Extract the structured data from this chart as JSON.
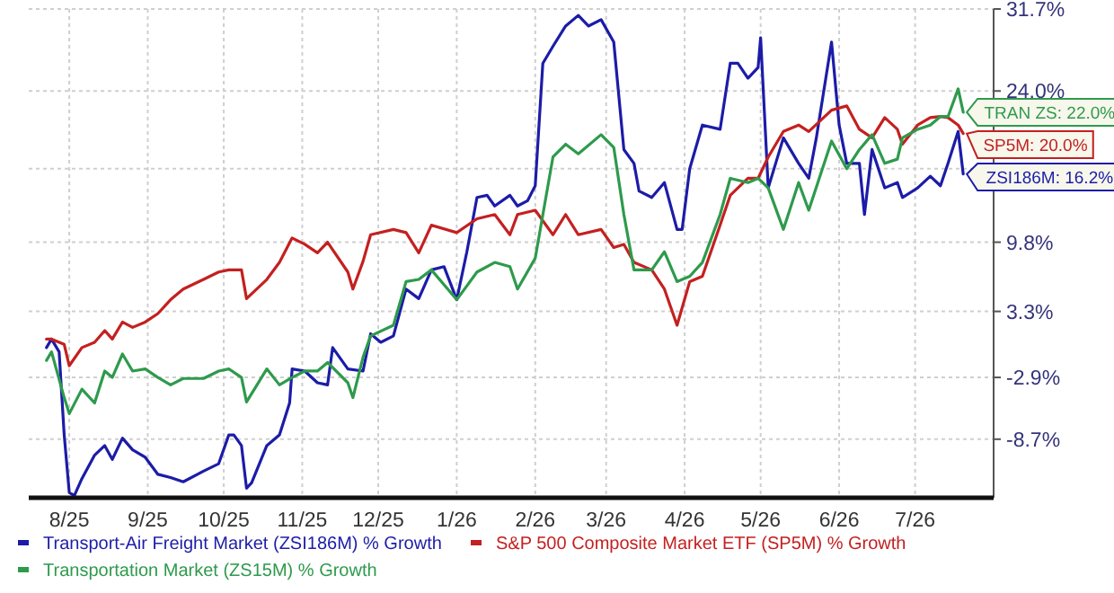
{
  "chart_data": {
    "type": "line",
    "x": [
      "2025-07-23",
      "2025-07-25",
      "2025-07-30",
      "2025-08-01",
      "2025-08-06",
      "2025-08-11",
      "2025-08-15",
      "2025-08-18",
      "2025-08-22",
      "2025-08-26",
      "2025-08-31",
      "2025-09-05",
      "2025-09-10",
      "2025-09-15",
      "2025-09-23",
      "2025-09-29",
      "2025-10-03",
      "2025-10-08",
      "2025-10-10",
      "2025-10-18",
      "2025-10-23",
      "2025-10-28",
      "2025-11-02",
      "2025-11-07",
      "2025-11-11",
      "2025-11-19",
      "2025-11-21",
      "2025-11-25",
      "2025-11-28",
      "2025-12-07",
      "2025-12-12",
      "2025-12-17",
      "2025-12-22",
      "2026-01-01",
      "2026-01-09",
      "2026-01-16",
      "2026-01-22",
      "2026-01-25",
      "2026-02-01",
      "2026-02-08",
      "2026-02-13",
      "2026-02-18",
      "2026-02-27",
      "2026-03-04",
      "2026-03-08",
      "2026-03-12",
      "2026-03-19",
      "2026-03-24",
      "2026-03-29",
      "2026-04-03",
      "2026-04-08",
      "2026-04-15",
      "2026-04-19",
      "2026-04-26",
      "2026-04-30",
      "2026-05-04",
      "2026-05-10",
      "2026-05-16",
      "2026-05-20",
      "2026-05-29",
      "2026-06-04",
      "2026-06-09",
      "2026-06-14",
      "2026-06-19",
      "2026-06-24",
      "2026-06-26",
      "2026-07-02",
      "2026-07-07",
      "2026-07-11",
      "2026-07-14",
      "2026-07-18",
      "2026-07-20"
    ],
    "series": [
      {
        "name": "Transport-Air Freight Market (ZSI186M) % Growth",
        "color": "#1c1ca8",
        "x": [
          "2025-07-23",
          "2025-07-25",
          "2025-07-28",
          "2025-07-30",
          "2025-08-01",
          "2025-08-03",
          "2025-08-06",
          "2025-08-11",
          "2025-08-15",
          "2025-08-18",
          "2025-08-22",
          "2025-08-26",
          "2025-08-31",
          "2025-09-05",
          "2025-09-10",
          "2025-09-15",
          "2025-09-23",
          "2025-09-29",
          "2025-10-03",
          "2025-10-05",
          "2025-10-08",
          "2025-10-10",
          "2025-10-12",
          "2025-10-18",
          "2025-10-23",
          "2025-10-27",
          "2025-10-28",
          "2025-11-02",
          "2025-11-07",
          "2025-11-11",
          "2025-11-13",
          "2025-11-19",
          "2025-11-25",
          "2025-11-28",
          "2025-12-02",
          "2025-12-07",
          "2025-12-12",
          "2025-12-17",
          "2025-12-22",
          "2025-12-27",
          "2026-01-01",
          "2026-01-05",
          "2026-01-09",
          "2026-01-13",
          "2026-01-16",
          "2026-01-22",
          "2026-01-25",
          "2026-01-29",
          "2026-02-01",
          "2026-02-04",
          "2026-02-08",
          "2026-02-13",
          "2026-02-18",
          "2026-02-22",
          "2026-02-27",
          "2026-03-04",
          "2026-03-08",
          "2026-03-12",
          "2026-03-14",
          "2026-03-19",
          "2026-03-24",
          "2026-03-29",
          "2026-03-31",
          "2026-04-03",
          "2026-04-08",
          "2026-04-15",
          "2026-04-19",
          "2026-04-22",
          "2026-04-26",
          "2026-04-30",
          "2026-05-01",
          "2026-05-04",
          "2026-05-10",
          "2026-05-16",
          "2026-05-20",
          "2026-05-23",
          "2026-05-29",
          "2026-06-01",
          "2026-06-04",
          "2026-06-09",
          "2026-06-11",
          "2026-06-14",
          "2026-06-19",
          "2026-06-24",
          "2026-06-26",
          "2026-07-02",
          "2026-07-07",
          "2026-07-11",
          "2026-07-14",
          "2026-07-18",
          "2026-07-20"
        ],
        "values": [
          -0.1,
          0.7,
          -0.5,
          -8.3,
          -13.7,
          -14.0,
          -12.4,
          -10.2,
          -9.3,
          -10.6,
          -8.6,
          -9.7,
          -10.4,
          -12.0,
          -12.3,
          -12.7,
          -11.7,
          -11.0,
          -8.3,
          -8.3,
          -9.3,
          -13.3,
          -12.8,
          -9.3,
          -8.3,
          -5.3,
          -2.1,
          -2.3,
          -3.4,
          -3.6,
          -0.1,
          -2.1,
          -2.3,
          1.2,
          0.4,
          1.0,
          5.4,
          4.5,
          7.2,
          7.5,
          4.4,
          8.9,
          14.0,
          14.2,
          13.2,
          14.2,
          13.2,
          13.7,
          15.1,
          26.6,
          28.2,
          30.1,
          31.1,
          30.1,
          30.7,
          28.6,
          18.5,
          17.2,
          14.6,
          14.0,
          15.4,
          11.0,
          11.0,
          16.7,
          20.8,
          20.4,
          26.6,
          26.6,
          25.2,
          26.2,
          29.0,
          14.9,
          19.6,
          17.2,
          15.8,
          19.6,
          28.6,
          20.8,
          17.2,
          17.2,
          12.4,
          18.5,
          14.9,
          15.4,
          14.0,
          14.9,
          16.0,
          15.1,
          17.2,
          20.2,
          16.2
        ]
      },
      {
        "name": "S&P 500 Composite Market ETF (SP5M) % Growth",
        "color": "#c42020",
        "values": [
          0.7,
          0.7,
          0.2,
          -1.8,
          -0.1,
          0.4,
          1.5,
          0.7,
          2.3,
          1.8,
          2.3,
          3.1,
          4.4,
          5.4,
          6.3,
          7.0,
          7.2,
          7.2,
          4.5,
          6.3,
          7.9,
          10.2,
          9.6,
          8.8,
          9.8,
          7.0,
          5.4,
          8.0,
          10.5,
          11.0,
          10.7,
          8.8,
          11.4,
          10.7,
          12.0,
          12.4,
          10.5,
          12.4,
          12.8,
          10.5,
          12.4,
          10.5,
          11.0,
          9.3,
          9.6,
          7.9,
          7.2,
          5.4,
          2.0,
          6.1,
          6.6,
          11.4,
          14.2,
          15.8,
          15.8,
          17.8,
          20.2,
          20.8,
          20.2,
          22.2,
          22.6,
          20.4,
          19.6,
          21.5,
          20.4,
          19.0,
          20.8,
          21.5,
          21.6,
          21.5,
          20.8,
          20.0
        ]
      },
      {
        "name": "Transportation Market (ZS15M) % Growth",
        "color": "#2e9a4c",
        "values": [
          -1.3,
          -0.5,
          -4.8,
          -6.3,
          -4.0,
          -5.3,
          -2.3,
          -2.9,
          -0.7,
          -2.3,
          -2.1,
          -2.9,
          -3.6,
          -3.0,
          -3.0,
          -2.3,
          -2.1,
          -2.9,
          -5.2,
          -2.1,
          -3.6,
          -2.9,
          -2.3,
          -2.3,
          -1.5,
          -3.4,
          -4.8,
          -1.0,
          1.0,
          2.0,
          6.1,
          6.3,
          7.2,
          4.4,
          7.0,
          7.9,
          7.5,
          5.4,
          8.3,
          17.8,
          19.0,
          18.1,
          19.9,
          18.7,
          12.4,
          7.2,
          7.2,
          8.9,
          6.1,
          6.6,
          7.9,
          12.4,
          15.8,
          15.4,
          15.8,
          14.9,
          11.0,
          15.4,
          12.8,
          19.3,
          16.7,
          18.5,
          19.9,
          17.2,
          17.6,
          19.6,
          20.4,
          20.8,
          21.6,
          21.6,
          24.2,
          22.0
        ]
      }
    ],
    "xlim": [
      "2025-07-16",
      "2026-08-01"
    ],
    "xticks": [
      {
        "value": "2025-08-01",
        "label": "8/25"
      },
      {
        "value": "2025-09-01",
        "label": "9/25"
      },
      {
        "value": "2025-10-01",
        "label": "10/25"
      },
      {
        "value": "2025-11-01",
        "label": "11/25"
      },
      {
        "value": "2025-12-01",
        "label": "12/25"
      },
      {
        "value": "2026-01-01",
        "label": "1/26"
      },
      {
        "value": "2026-02-01",
        "label": "2/26"
      },
      {
        "value": "2026-03-01",
        "label": "3/26"
      },
      {
        "value": "2026-04-01",
        "label": "4/26"
      },
      {
        "value": "2026-05-01",
        "label": "5/26"
      },
      {
        "value": "2026-06-01",
        "label": "6/26"
      },
      {
        "value": "2026-07-01",
        "label": "7/26"
      }
    ],
    "ylim": [
      -14.2,
      31.7
    ],
    "yticks": [
      {
        "value": 31.7,
        "label": "31.7%"
      },
      {
        "value": 24.0,
        "label": "24.0%"
      },
      {
        "value": 16.7,
        "label": null
      },
      {
        "value": 9.8,
        "label": "9.8%"
      },
      {
        "value": 3.3,
        "label": "3.3%"
      },
      {
        "value": -2.9,
        "label": "-2.9%"
      },
      {
        "value": -8.7,
        "label": "-8.7%"
      }
    ],
    "annotations": [
      {
        "text": "TRAN ZS: 22.0%",
        "x": "2026-07-20",
        "y": 22.0
      },
      {
        "text": "SP5M: 20.0%",
        "x": "2026-07-20",
        "y": 20.0
      },
      {
        "text": "ZSI186M: 16.2%",
        "x": "2026-07-20",
        "y": 16.2
      }
    ],
    "grid": true,
    "legend": "bottom",
    "marker": "none",
    "line_style": "solid"
  }
}
